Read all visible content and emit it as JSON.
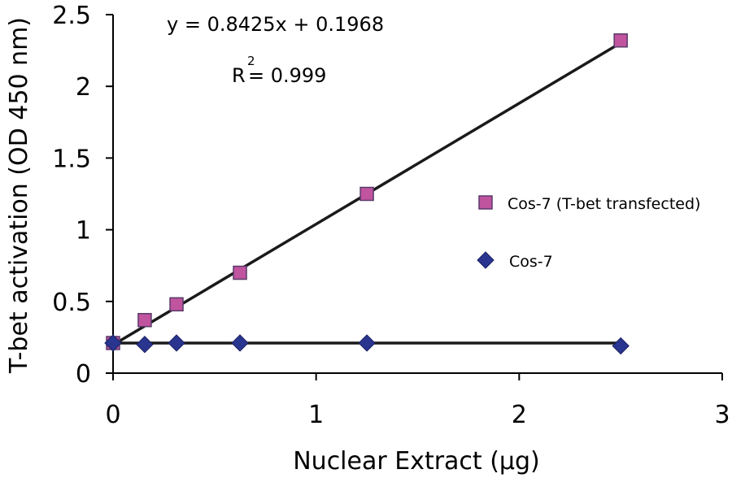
{
  "chart_data": {
    "type": "scatter",
    "title": "",
    "xlabel": "Nuclear Extract (µg)",
    "ylabel": "T-bet activation (OD 450 nm)",
    "xlim": [
      0,
      3
    ],
    "ylim": [
      0,
      2.5
    ],
    "x_ticks": [
      0,
      1,
      2,
      3
    ],
    "x_tick_labels": [
      "0",
      "1",
      "2",
      "3"
    ],
    "y_ticks": [
      0,
      0.5,
      1,
      1.5,
      2,
      2.5
    ],
    "y_tick_labels": [
      "0",
      "0.5",
      "1",
      "1.5",
      "2",
      "2.5"
    ],
    "grid": false,
    "legend_position": "right",
    "series": [
      {
        "name": "Cos-7 (T-bet transfected)",
        "marker": "square",
        "color": "#c0549f",
        "edge_color": "#5a3a6a",
        "x": [
          0,
          0.156,
          0.3125,
          0.625,
          1.25,
          2.5
        ],
        "y": [
          0.21,
          0.37,
          0.48,
          0.7,
          1.25,
          2.32
        ],
        "trendline": {
          "slope": 0.8425,
          "intercept": 0.1968,
          "x_range": [
            0,
            2.5
          ]
        }
      },
      {
        "name": "Cos-7",
        "marker": "diamond",
        "color": "#2a3590",
        "edge_color": "#1a2060",
        "x": [
          0,
          0.156,
          0.3125,
          0.625,
          1.25,
          2.5
        ],
        "y": [
          0.21,
          0.2,
          0.21,
          0.21,
          0.21,
          0.19
        ],
        "trendline": {
          "slope": 0.0,
          "intercept": 0.21,
          "x_range": [
            0,
            2.5
          ]
        }
      }
    ],
    "annotations": {
      "equation": "y = 0.8425x + 0.1968",
      "r_squared_prefix": "R",
      "r_squared_superscript": "2",
      "r_squared_value": "= 0.999"
    }
  }
}
